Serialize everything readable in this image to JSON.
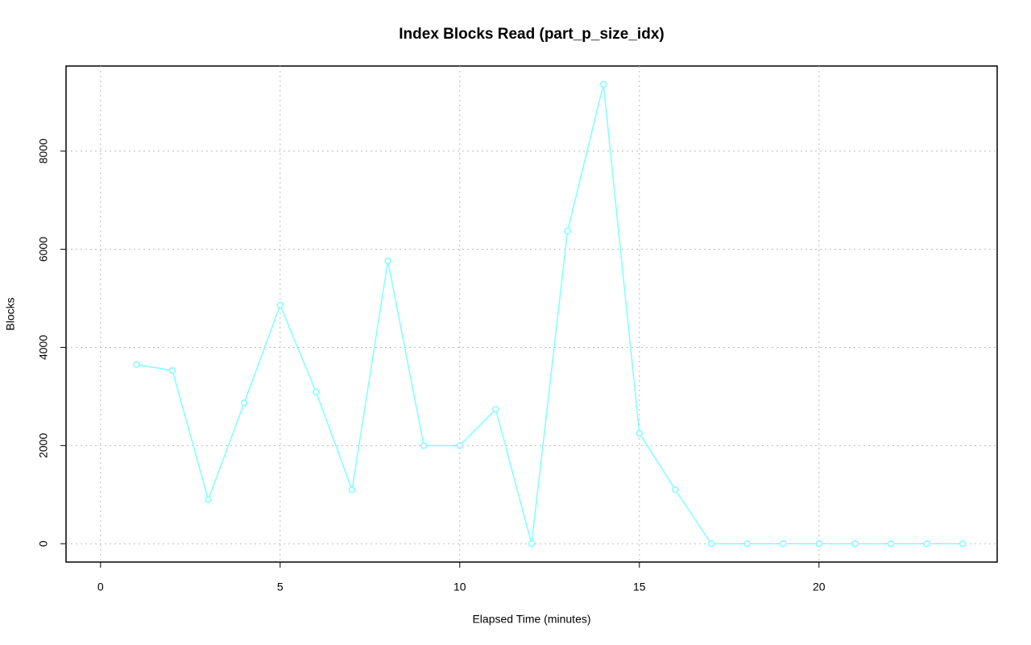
{
  "chart_data": {
    "type": "line",
    "title": "Index Blocks Read (part_p_size_idx)",
    "x_label": "Elapsed Time (minutes)",
    "y_label": "Blocks",
    "x": [
      1,
      2,
      3,
      4,
      5,
      6,
      7,
      8,
      9,
      10,
      11,
      12,
      13,
      14,
      15,
      16,
      17,
      18,
      19,
      20,
      21,
      22,
      23,
      24
    ],
    "series": [
      {
        "color": "#80ffff",
        "values": [
          3650,
          3530,
          900,
          2870,
          4860,
          3090,
          1100,
          5760,
          2000,
          2000,
          2740,
          0,
          6370,
          9360,
          2250,
          1100,
          0,
          0,
          0,
          0,
          0,
          0,
          0,
          0
        ]
      }
    ],
    "xlim": [
      -0.96,
      24.96
    ],
    "ylim": [
      -374,
      9734
    ],
    "xticks": [
      0,
      5,
      10,
      15,
      20
    ],
    "yticks": [
      0,
      2000,
      4000,
      6000,
      8000
    ],
    "grid": true
  }
}
